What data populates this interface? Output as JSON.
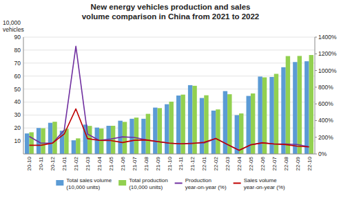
{
  "chart_data": {
    "type": "bar",
    "title": "New energy vehicles production and sales\nvolume comparison in China from 2021 to 2022",
    "ylabel": "10,000\nvehicles",
    "categories": [
      "20-10",
      "20-11",
      "20-12",
      "21-01",
      "21-02",
      "21-03",
      "21-04",
      "21-05",
      "21-06",
      "21-07",
      "21-08",
      "21-09",
      "21-10",
      "21-11",
      "21-12",
      "22-01",
      "22-02",
      "22-03",
      "22-04",
      "22-05",
      "22-06",
      "22-07",
      "22-08",
      "22-09",
      "22-10"
    ],
    "series": [
      {
        "name": "Total sales volume\n(10,000 units)",
        "type": "bar",
        "color": "#5b9bd5",
        "values": [
          15.8,
          20.0,
          24.0,
          17.9,
          10.5,
          22.6,
          20.3,
          21.7,
          25.6,
          27.1,
          27.1,
          35.7,
          38.3,
          45.0,
          53.0,
          43.1,
          33.4,
          48.4,
          29.9,
          44.7,
          59.6,
          59.3,
          66.8,
          70.8,
          71.4
        ]
      },
      {
        "name": "Total production\n(10,000 units)",
        "type": "bar",
        "color": "#92d050",
        "values": [
          16.7,
          19.8,
          24.8,
          19.4,
          12.0,
          21.6,
          19.6,
          21.7,
          24.7,
          28.0,
          30.9,
          35.3,
          40.3,
          45.7,
          52.5,
          45.2,
          34.3,
          46.0,
          31.2,
          46.6,
          59.0,
          61.7,
          75.4,
          75.5,
          76.2
        ]
      },
      {
        "name": "Production\nyear-on-year (%)",
        "type": "line",
        "axis": "y2",
        "color": "#7030a0",
        "values": [
          210,
          130,
          130,
          285,
          1290,
          239,
          163,
          179,
          205,
          198,
          170,
          148,
          130,
          122,
          130,
          132,
          186,
          113,
          43,
          110,
          135,
          120,
          120,
          113,
          87
        ]
      },
      {
        "name": "Sales volume\nyear-on-year (%)",
        "type": "line",
        "axis": "y2",
        "color": "#c00000",
        "values": [
          104,
          104,
          130,
          239,
          540,
          184,
          163,
          160,
          137,
          164,
          168,
          148,
          130,
          121,
          126,
          140,
          185,
          114,
          44,
          109,
          133,
          119,
          112,
          93,
          85
        ]
      }
    ],
    "ylim": [
      0,
      90
    ],
    "yticks": [
      10,
      20,
      30,
      40,
      50,
      60,
      70,
      80,
      90
    ],
    "y2lim": [
      0,
      1400
    ],
    "y2ticks": [
      {
        "value": 0,
        "label": "0%"
      },
      {
        "value": 200,
        "label": "200%"
      },
      {
        "value": 400,
        "label": "400%"
      },
      {
        "value": 600,
        "label": "600%"
      },
      {
        "value": 800,
        "label": "800%"
      },
      {
        "value": 1000,
        "label": "1000%"
      },
      {
        "value": 1200,
        "label": "1200%"
      },
      {
        "value": 1400,
        "label": "1400%"
      }
    ],
    "grid": true,
    "legend": "bottom"
  }
}
